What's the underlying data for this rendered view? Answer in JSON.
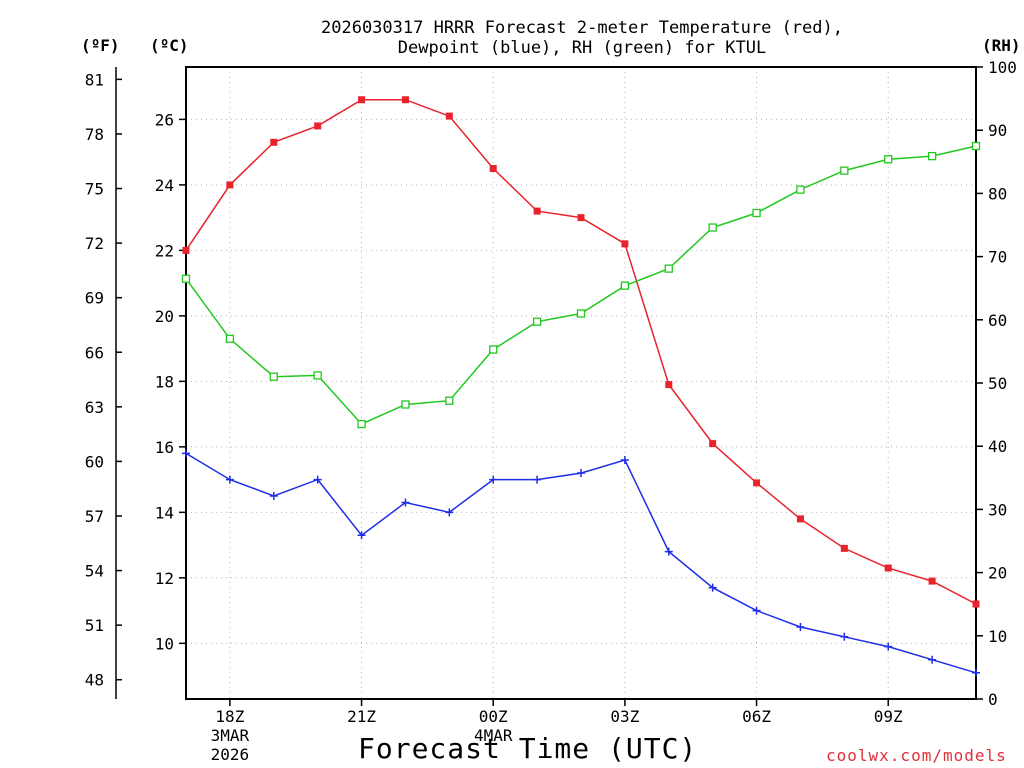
{
  "chart_data": {
    "type": "line",
    "title": [
      "2026030317 HRRR Forecast 2-meter Temperature (red),",
      "Dewpoint (blue), RH (green) for KTUL"
    ],
    "xlabel": "Forecast Time (UTC)",
    "credit": "coolwx.com/models",
    "units": {
      "fahrenheit": "(ºF)",
      "celsius": "(ºC)",
      "rh": "(RH)"
    },
    "x": [
      17,
      18,
      19,
      20,
      21,
      22,
      23,
      24,
      25,
      26,
      27,
      28,
      29,
      30,
      31,
      32,
      33,
      34,
      35
    ],
    "xlim": [
      17,
      35
    ],
    "x_ticks": [
      {
        "x": 18,
        "label": "18Z",
        "sub": [
          "3MAR",
          "2026"
        ]
      },
      {
        "x": 21,
        "label": "21Z",
        "sub": []
      },
      {
        "x": 24,
        "label": "00Z",
        "sub": [
          "4MAR"
        ]
      },
      {
        "x": 27,
        "label": "03Z",
        "sub": []
      },
      {
        "x": 30,
        "label": "06Z",
        "sub": []
      },
      {
        "x": 33,
        "label": "09Z",
        "sub": []
      }
    ],
    "ylim_celsius": [
      8.3,
      27.6
    ],
    "yticks_celsius": [
      "10",
      "12",
      "14",
      "16",
      "18",
      "20",
      "22",
      "24",
      "26"
    ],
    "yticks_fahrenheit": [
      "48",
      "51",
      "54",
      "57",
      "60",
      "63",
      "66",
      "69",
      "72",
      "75",
      "78",
      "81"
    ],
    "ylim_rh": [
      0,
      100
    ],
    "yticks_rh": [
      "0",
      "10",
      "20",
      "30",
      "40",
      "50",
      "60",
      "70",
      "80",
      "90",
      "100"
    ],
    "series": [
      {
        "name": "Temperature",
        "axis": "celsius",
        "color": "#e8232c",
        "marker": "filled-square",
        "values": [
          22.0,
          24.0,
          25.3,
          25.8,
          26.6,
          26.6,
          26.1,
          24.5,
          23.2,
          23.0,
          22.2,
          17.9,
          16.1,
          14.9,
          13.8,
          12.9,
          12.3,
          11.9,
          11.2
        ]
      },
      {
        "name": "Dewpoint",
        "axis": "celsius",
        "color": "#1e2ee8",
        "marker": "plus",
        "values": [
          15.8,
          15.0,
          14.5,
          15.0,
          13.3,
          14.3,
          14.0,
          15.0,
          15.0,
          15.2,
          15.6,
          12.8,
          11.7,
          11.0,
          10.5,
          10.2,
          9.9,
          9.5,
          9.1
        ]
      },
      {
        "name": "RH",
        "axis": "rh",
        "color": "#22c81e",
        "marker": "open-square",
        "values": [
          66.5,
          57.0,
          51.0,
          51.2,
          43.5,
          46.6,
          47.2,
          55.3,
          59.7,
          61.0,
          65.4,
          68.1,
          74.6,
          76.9,
          80.6,
          83.6,
          85.4,
          85.9,
          87.5
        ]
      }
    ]
  }
}
